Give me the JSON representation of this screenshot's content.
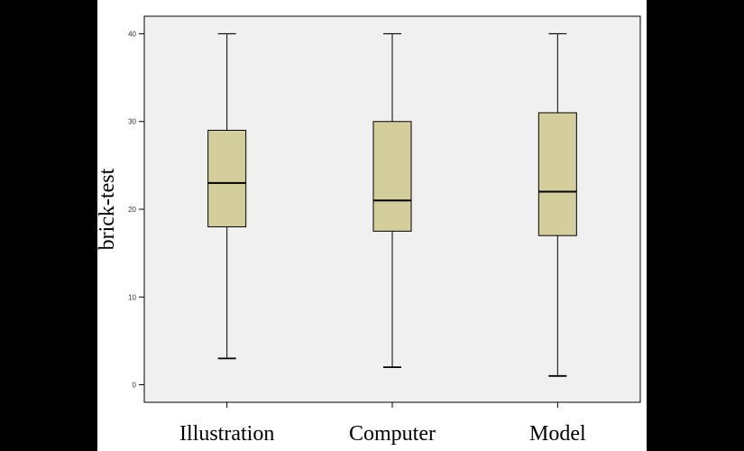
{
  "chart_data": {
    "type": "boxplot",
    "title": "",
    "xlabel": "",
    "ylabel": "brick-test",
    "ylim": [
      -2,
      42
    ],
    "yticks": [
      0,
      10,
      20,
      30,
      40
    ],
    "ytick_labels": [
      "0",
      "10",
      "20",
      "30",
      "40"
    ],
    "grid": false,
    "categories": [
      "Illustration",
      "Computer",
      "Model"
    ],
    "boxes": [
      {
        "category": "Illustration",
        "min": 3,
        "q1": 18,
        "median": 23,
        "q3": 29,
        "max": 40
      },
      {
        "category": "Computer",
        "min": 2,
        "q1": 17.5,
        "median": 21,
        "q3": 30,
        "max": 40
      },
      {
        "category": "Model",
        "min": 1,
        "q1": 17,
        "median": 22,
        "q3": 31,
        "max": 40
      }
    ],
    "colors": {
      "outer_background": "#000000",
      "page_background": "#ffffff",
      "plot_background": "#f0f0f0",
      "box_fill": "#d3ce9c",
      "stroke": "#000000"
    }
  }
}
